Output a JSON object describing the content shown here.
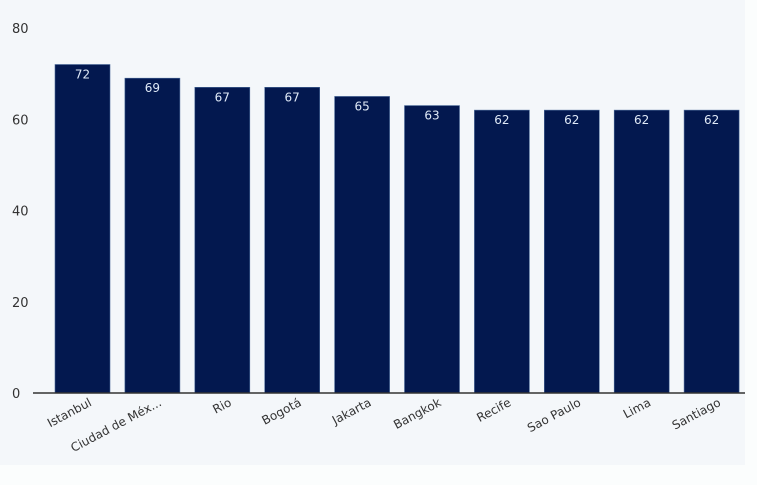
{
  "chart_data": {
    "type": "bar",
    "categories": [
      "Istanbul",
      "Ciudad de Méx...",
      "Rio",
      "Bogotá",
      "Jakarta",
      "Bangkok",
      "Recife",
      "Sao Paulo",
      "Lima",
      "Santiago"
    ],
    "values": [
      72,
      69,
      67,
      67,
      65,
      63,
      62,
      62,
      62,
      62
    ],
    "title": "",
    "xlabel": "",
    "ylabel": "",
    "ylim": [
      0,
      80
    ],
    "yticks": [
      0,
      20,
      40,
      60,
      80
    ],
    "grid": false,
    "bar_color": "#03184f",
    "label_color": "#dfe9f7",
    "background": "#f4f7fa"
  }
}
